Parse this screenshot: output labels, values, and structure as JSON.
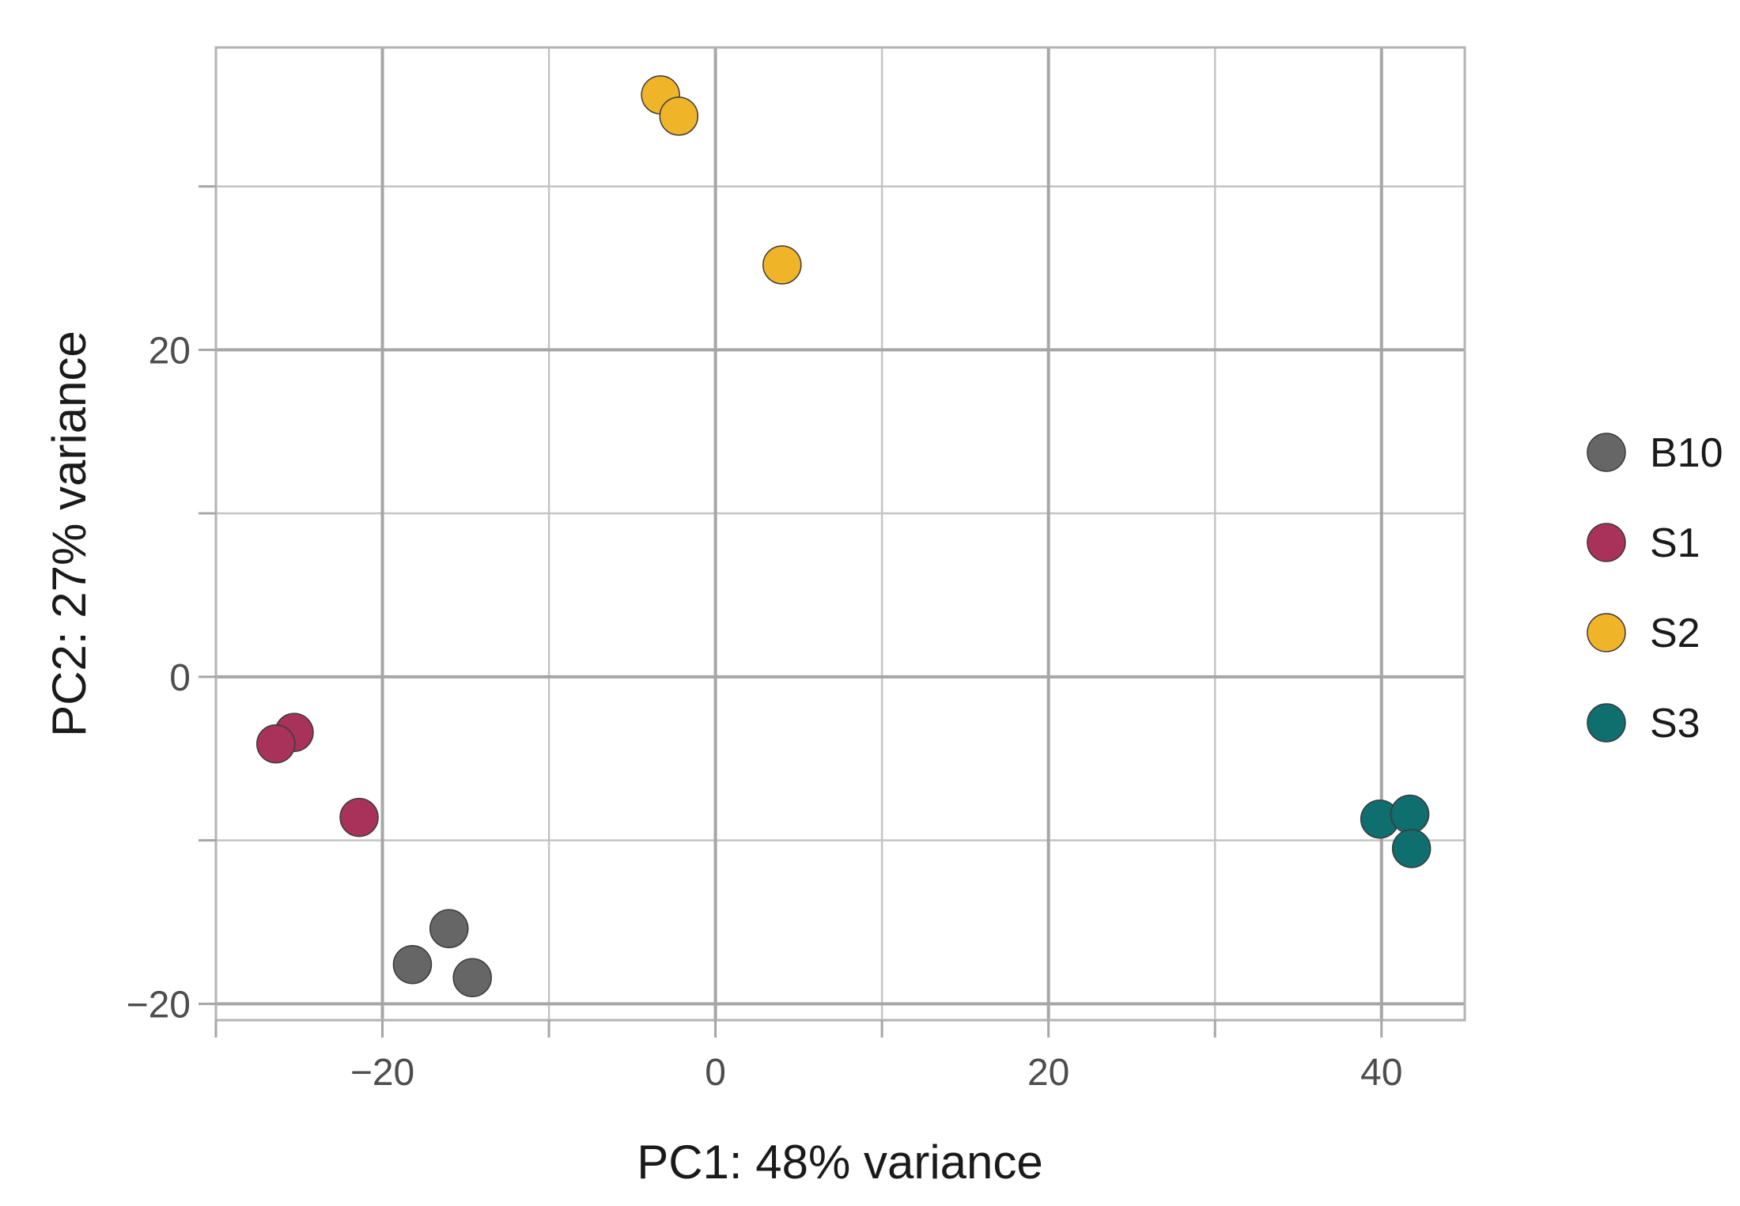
{
  "chart_data": {
    "type": "scatter",
    "xlabel": "PC1: 48% variance",
    "ylabel": "PC2: 27% variance",
    "xlim": [
      -30,
      45
    ],
    "ylim": [
      -21,
      38.5
    ],
    "x_ticks": [
      -20,
      0,
      20,
      40
    ],
    "y_ticks": [
      -20,
      0,
      20
    ],
    "x_tick_labels": [
      "−20",
      "0",
      "20",
      "40"
    ],
    "y_tick_labels": [
      "−20",
      "0",
      "20"
    ],
    "grid": true,
    "legend_position": "right",
    "series": [
      {
        "name": "B10",
        "color": "#666666",
        "points": [
          {
            "x": -18.2,
            "y": -17.6
          },
          {
            "x": -16.0,
            "y": -15.4
          },
          {
            "x": -14.6,
            "y": -18.4
          }
        ]
      },
      {
        "name": "S1",
        "color": "#a8325a",
        "points": [
          {
            "x": -25.3,
            "y": -3.4
          },
          {
            "x": -26.4,
            "y": -4.1
          },
          {
            "x": -21.4,
            "y": -8.6
          }
        ]
      },
      {
        "name": "S2",
        "color": "#f0b429",
        "points": [
          {
            "x": -3.3,
            "y": 35.6
          },
          {
            "x": -2.2,
            "y": 34.3
          },
          {
            "x": 4.0,
            "y": 25.2
          }
        ]
      },
      {
        "name": "S3",
        "color": "#0f6e6e",
        "points": [
          {
            "x": 39.9,
            "y": -8.7
          },
          {
            "x": 41.7,
            "y": -8.4
          },
          {
            "x": 41.8,
            "y": -10.5
          }
        ]
      }
    ]
  }
}
